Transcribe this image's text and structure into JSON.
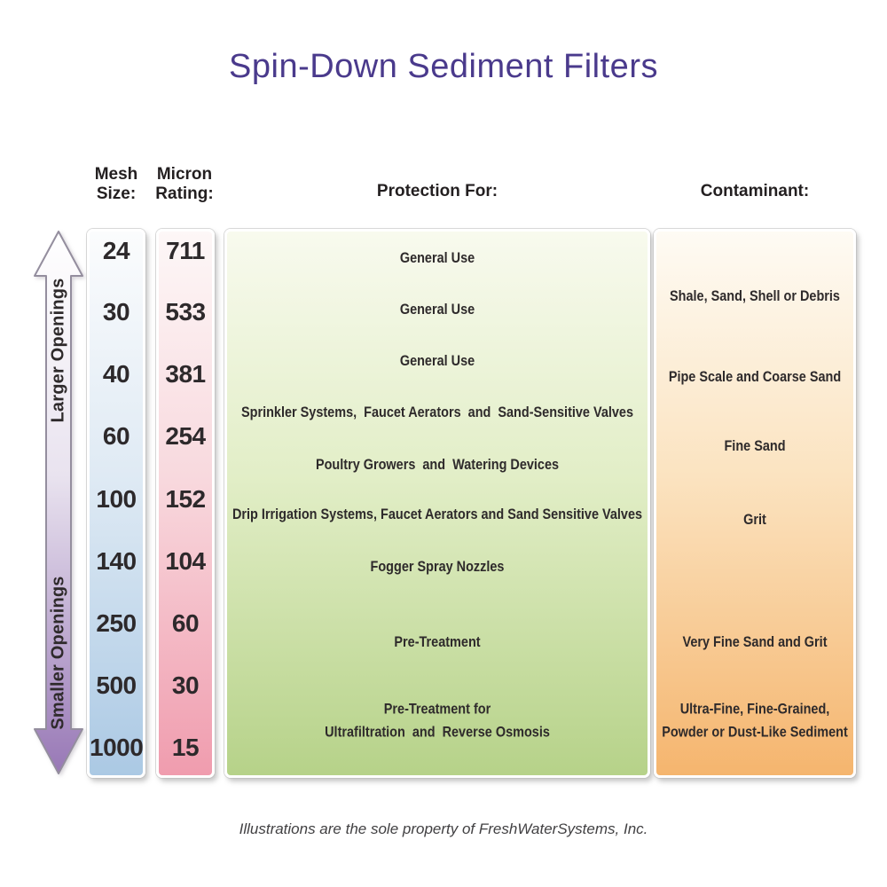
{
  "title": "Spin-Down Sediment Filters",
  "accent_color": "#4a3a8c",
  "arrow": {
    "top_label": "Larger Openings",
    "bottom_label": "Smaller Openings",
    "gradient_top": "#ffffff",
    "gradient_bottom": "#9878b6"
  },
  "columns": {
    "mesh": {
      "header": "Mesh\nSize:",
      "values": [
        "24",
        "30",
        "40",
        "60",
        "100",
        "140",
        "250",
        "500",
        "1000"
      ],
      "color_top": "#fbfcfd",
      "color_bottom": "#abc9e4"
    },
    "micron": {
      "header": "Micron\nRating:",
      "values": [
        "711",
        "533",
        "381",
        "254",
        "152",
        "104",
        "60",
        "30",
        "15"
      ],
      "color_top": "#fdf7f7",
      "color_bottom": "#f09cae"
    },
    "protection": {
      "header": "Protection For:",
      "rows": [
        "General Use",
        "General Use",
        "General Use",
        "Sprinkler Systems,  Faucet Aerators  and  Sand-Sensitive Valves",
        "Poultry Growers  and  Watering Devices",
        "Drip Irrigation Systems, Faucet Aerators and Sand Sensitive Valves",
        "Fogger Spray Nozzles",
        "Pre-Treatment",
        "Pre-Treatment for\nUltrafiltration  and  Reverse Osmosis"
      ],
      "color_top": "#f8faee",
      "color_bottom": "#b6d289"
    },
    "contaminant": {
      "header": "Contaminant:",
      "rows": [
        "Shale, Sand, Shell or Debris",
        "Pipe Scale and Coarse Sand",
        "Fine Sand",
        "Grit",
        "Very Fine Sand and Grit",
        "Ultra-Fine, Fine-Grained,\nPowder or Dust-Like Sediment"
      ],
      "color_top": "#fefbf4",
      "color_bottom": "#f5b56e"
    }
  },
  "footer": "Illustrations are the sole property of FreshWaterSystems, Inc.",
  "chart_data": {
    "type": "table",
    "title": "Spin-Down Sediment Filters",
    "columns": [
      "Mesh Size",
      "Micron Rating",
      "Protection For",
      "Contaminant"
    ],
    "mesh_size": [
      24,
      30,
      40,
      60,
      100,
      140,
      250,
      500,
      1000
    ],
    "micron_rating": [
      711,
      533,
      381,
      254,
      152,
      104,
      60,
      30,
      15
    ],
    "protection_for": [
      "General Use",
      "General Use",
      "General Use",
      "Sprinkler Systems, Faucet Aerators and Sand-Sensitive Valves",
      "Poultry Growers and Watering Devices",
      "Drip Irrigation Systems, Faucet Aerators and Sand Sensitive Valves",
      "Fogger Spray Nozzles",
      "Pre-Treatment",
      "Pre-Treatment for Ultrafiltration and Reverse Osmosis"
    ],
    "contaminant": [
      "Shale, Sand, Shell or Debris",
      "Pipe Scale and Coarse Sand",
      "Fine Sand",
      "Grit",
      "Very Fine Sand and Grit",
      "Ultra-Fine, Fine-Grained, Powder or Dust-Like Sediment"
    ],
    "orientation_note": "vertical double arrow: larger openings at top, smaller openings at bottom"
  }
}
